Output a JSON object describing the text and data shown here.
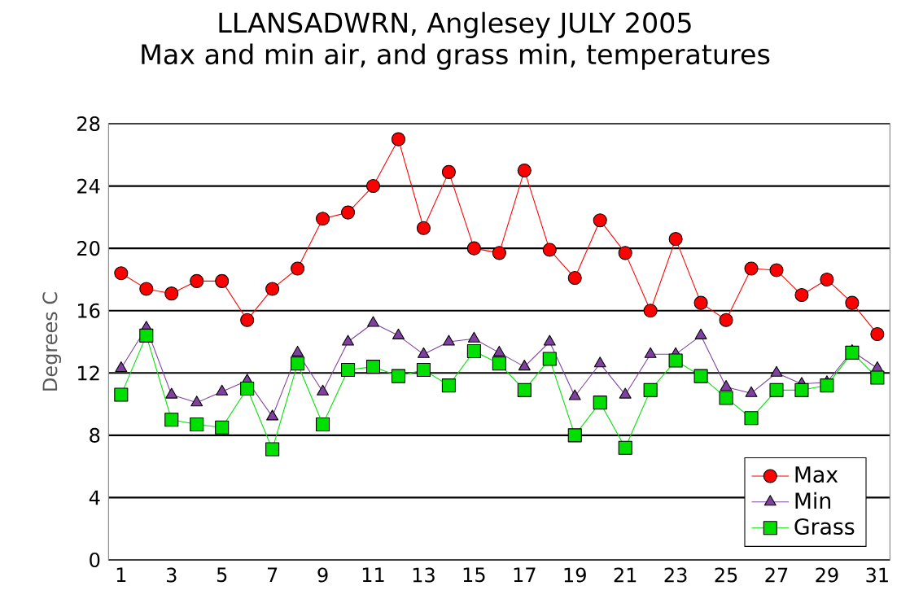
{
  "chart_data": {
    "type": "line",
    "title": "LLANSADWRN, Anglesey JULY 2005",
    "subtitle": "Max and min air, and grass min, temperatures",
    "ylabel": "Degrees C",
    "x": [
      1,
      2,
      3,
      4,
      5,
      6,
      7,
      8,
      9,
      10,
      11,
      12,
      13,
      14,
      15,
      16,
      17,
      18,
      19,
      20,
      21,
      22,
      23,
      24,
      25,
      26,
      27,
      28,
      29,
      30,
      31
    ],
    "xlim": [
      0.5,
      31.5
    ],
    "xticks": [
      1,
      3,
      5,
      7,
      9,
      11,
      13,
      15,
      17,
      19,
      21,
      23,
      25,
      27,
      29,
      31
    ],
    "ylim": [
      0,
      28
    ],
    "yticks": [
      0,
      4,
      8,
      12,
      16,
      20,
      24,
      28
    ],
    "grid": "y",
    "legend": "bottom right",
    "series": [
      {
        "name": "Max",
        "color": "#ff0000",
        "marker": "circle",
        "values": [
          18.4,
          17.4,
          17.1,
          17.9,
          17.9,
          15.4,
          17.4,
          18.7,
          21.9,
          22.3,
          24.0,
          27.0,
          21.3,
          24.9,
          20.0,
          19.7,
          25.0,
          19.9,
          18.1,
          21.8,
          19.7,
          16.0,
          20.6,
          16.5,
          15.4,
          18.7,
          18.6,
          17.0,
          18.0,
          16.5,
          14.5
        ]
      },
      {
        "name": "Min",
        "color": "#8040a0",
        "marker": "triangle",
        "values": [
          12.3,
          14.9,
          10.6,
          10.1,
          10.8,
          11.5,
          9.2,
          13.3,
          10.8,
          14.0,
          15.2,
          14.4,
          13.2,
          14.0,
          14.2,
          13.3,
          12.4,
          14.0,
          10.5,
          12.6,
          10.6,
          13.2,
          13.2,
          14.4,
          11.1,
          10.7,
          12.0,
          11.3,
          11.4,
          13.4,
          12.3
        ]
      },
      {
        "name": "Grass",
        "color": "#00e000",
        "marker": "square",
        "values": [
          10.6,
          14.4,
          9.0,
          8.7,
          8.5,
          11.0,
          7.1,
          12.6,
          8.7,
          12.2,
          12.4,
          11.8,
          12.2,
          11.2,
          13.4,
          12.6,
          10.9,
          12.9,
          8.0,
          10.1,
          7.2,
          10.9,
          12.8,
          11.8,
          10.4,
          9.1,
          10.9,
          10.9,
          11.2,
          13.3,
          11.7
        ]
      }
    ]
  }
}
